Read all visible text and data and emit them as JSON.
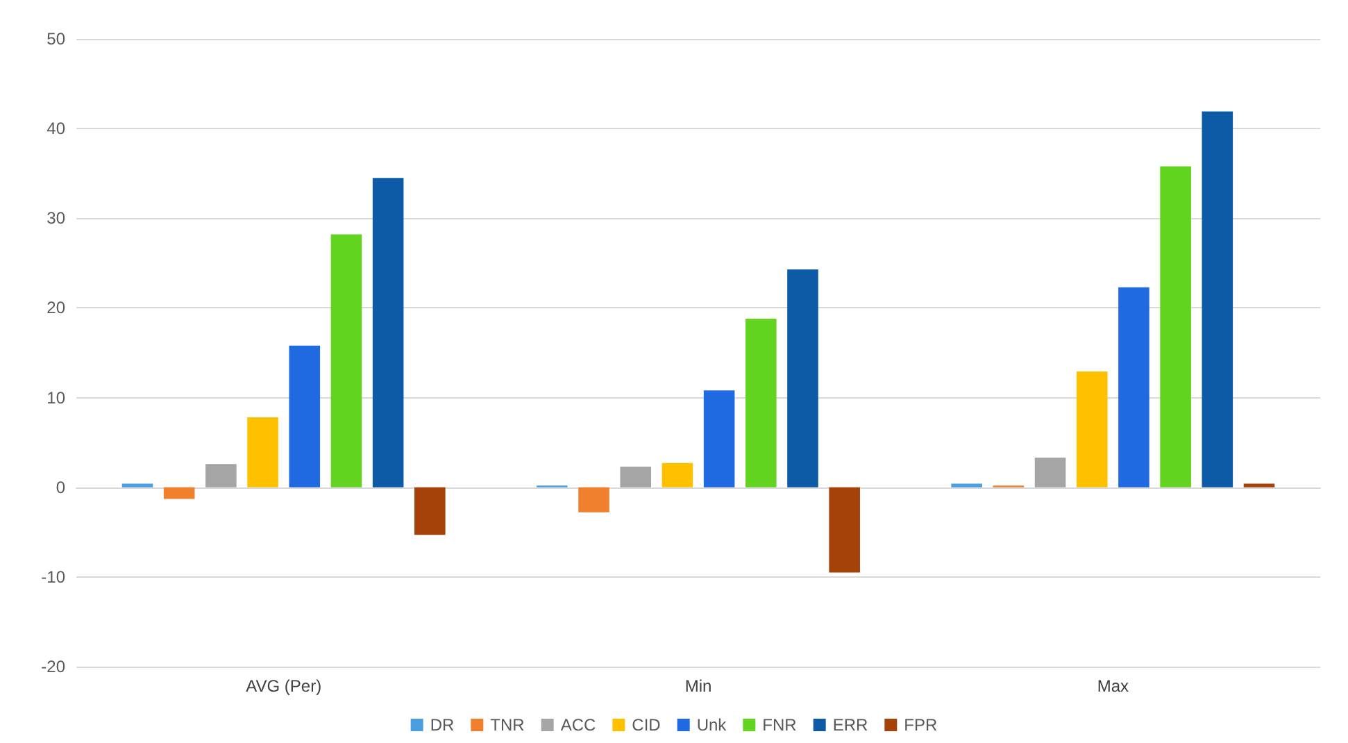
{
  "chart_data": {
    "type": "bar",
    "categories": [
      "AVG (Per)",
      "Min",
      "Max"
    ],
    "series": [
      {
        "name": "DR",
        "color": "#4a9ee0",
        "values": [
          0.4,
          0.2,
          0.4
        ]
      },
      {
        "name": "TNR",
        "color": "#f07f2e",
        "values": [
          -1.3,
          -2.8,
          0.2
        ]
      },
      {
        "name": "ACC",
        "color": "#a5a5a5",
        "values": [
          2.6,
          2.3,
          3.3
        ]
      },
      {
        "name": "CID",
        "color": "#ffc000",
        "values": [
          7.8,
          2.7,
          12.9
        ]
      },
      {
        "name": "Unk",
        "color": "#1f6ae0",
        "values": [
          15.8,
          10.8,
          22.3
        ]
      },
      {
        "name": "FNR",
        "color": "#62d31e",
        "values": [
          28.2,
          18.8,
          35.8
        ]
      },
      {
        "name": "ERR",
        "color": "#0d5aa7",
        "values": [
          34.5,
          24.3,
          41.9
        ]
      },
      {
        "name": "FPR",
        "color": "#a4420a",
        "values": [
          -5.3,
          -9.5,
          0.4
        ]
      }
    ],
    "ylim": [
      -20,
      50
    ],
    "yticks": [
      -20,
      -10,
      0,
      10,
      20,
      30,
      40,
      50
    ],
    "grid": "y",
    "legend": "bottom"
  }
}
